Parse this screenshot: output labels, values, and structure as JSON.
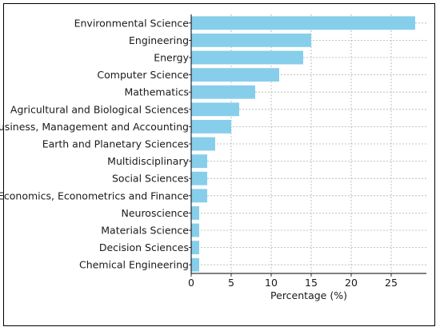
{
  "chart_data": {
    "type": "bar",
    "orientation": "horizontal",
    "categories": [
      "Environmental Science",
      "Engineering",
      "Energy",
      "Computer Science",
      "Mathematics",
      "Agricultural and Biological Sciences",
      "Business, Management and Accounting",
      "Earth and Planetary Sciences",
      "Multidisciplinary",
      "Social Sciences",
      "Economics, Econometrics and Finance",
      "Neuroscience",
      "Materials Science",
      "Decision Sciences",
      "Chemical Engineering"
    ],
    "values": [
      28,
      15,
      14,
      11,
      8,
      6,
      5,
      3,
      2,
      2,
      2,
      1,
      1,
      1,
      1
    ],
    "xlabel": "Percentage (%)",
    "ylabel": "",
    "xlim": [
      0,
      29.4
    ],
    "xticks": [
      0,
      5,
      10,
      15,
      20,
      25
    ],
    "grid": true,
    "colors": {
      "bar": "#87ceeb",
      "grid": "#b0b0b0",
      "axis": "#000000",
      "frame": "#000000"
    }
  }
}
